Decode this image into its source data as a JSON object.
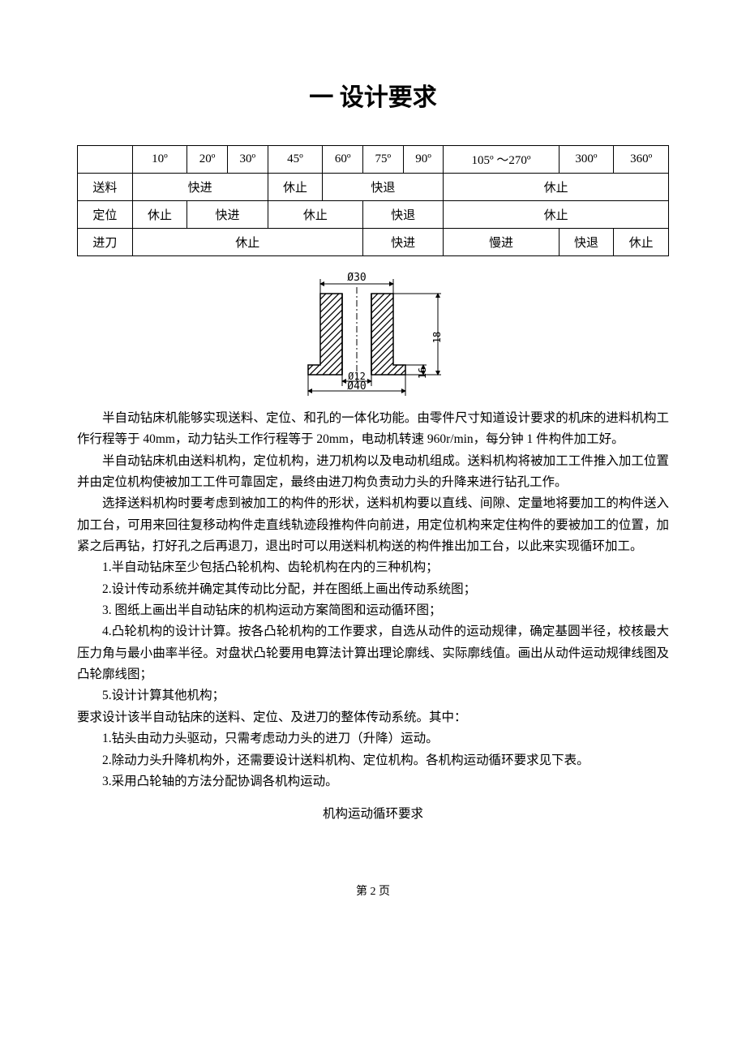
{
  "title": "一 设计要求",
  "table": {
    "headers": [
      "",
      "10º",
      "20º",
      "30º",
      "45º",
      "60º",
      "75º",
      "90º",
      "105º ～270º",
      "300º",
      "360º"
    ],
    "rows": [
      {
        "label": "送料",
        "cells": [
          {
            "text": "快进",
            "span": 3
          },
          {
            "text": "休止",
            "span": 1
          },
          {
            "text": "快退",
            "span": 3
          },
          {
            "text": "休止",
            "span": 3
          }
        ]
      },
      {
        "label": "定位",
        "cells": [
          {
            "text": "休止",
            "span": 1
          },
          {
            "text": "快进",
            "span": 2
          },
          {
            "text": "休止",
            "span": 2
          },
          {
            "text": "快退",
            "span": 2
          },
          {
            "text": "休止",
            "span": 3
          }
        ]
      },
      {
        "label": "进刀",
        "cells": [
          {
            "text": "休止",
            "span": 5
          },
          {
            "text": "快进",
            "span": 2
          },
          {
            "text": "慢进",
            "span": 1
          },
          {
            "text": "快退",
            "span": 1
          },
          {
            "text": "休止",
            "span": 1
          }
        ]
      }
    ]
  },
  "diagram": {
    "labels": {
      "d30": "Ø30",
      "d12": "Ø12",
      "d40": "Ø40",
      "h16": "16",
      "h18": "18"
    },
    "colors": {
      "stroke": "#000000",
      "hatch": "#000000",
      "bg": "#ffffff"
    }
  },
  "paragraphs": {
    "p1": "半自动钻床机能够实现送料、定位、和孔的一体化功能。由零件尺寸知道设计要求的机床的进料机构工作行程等于 40mm，动力钻头工作行程等于 20mm，电动机转速 960r/min，每分钟 1 件构件加工好。",
    "p2": "半自动钻床机由送料机构，定位机构，进刀机构以及电动机组成。送料机构将被加工工件推入加工位置并由定位机构使被加工工件可靠固定，最终由进刀构负责动力头的升降来进行钻孔工作。",
    "p3": "选择送料机构时要考虑到被加工的构件的形状，送料机构要以直线、间隙、定量地将要加工的构件送入加工台，可用来回往复移动构件走直线轨迹段推构件向前进，用定位机构来定住构件的要被加工的位置，加紧之后再钻，打好孔之后再退刀，退出时可以用送料机构送的构件推出加工台，以此来实现循环加工。",
    "l1": "1.半自动钻床至少包括凸轮机构、齿轮机构在内的三种机构；",
    "l2": "2.设计传动系统并确定其传动比分配，并在图纸上画出传动系统图；",
    "l3": "3. 图纸上画出半自动钻床的机构运动方案简图和运动循环图；",
    "l4": "4.凸轮机构的设计计算。按各凸轮机构的工作要求，自选从动件的运动规律，确定基圆半径，校核最大压力角与最小曲率半径。对盘状凸轮要用电算法计算出理论廓线、实际廓线值。画出从动件运动规律线图及凸轮廓线图；",
    "l5": "5.设计计算其他机构；",
    "p4": "要求设计该半自动钻床的送料、定位、及进刀的整体传动系统。其中：",
    "l6": "1.钻头由动力头驱动，只需考虑动力头的进刀（升降）运动。",
    "l7": "2.除动力头升降机构外，还需要设计送料机构、定位机构。各机构运动循环要求见下表。",
    "l8": "3.采用凸轮轴的方法分配协调各机构运动。",
    "subtitle": "机构运动循环要求"
  },
  "footer": "第 2 页"
}
